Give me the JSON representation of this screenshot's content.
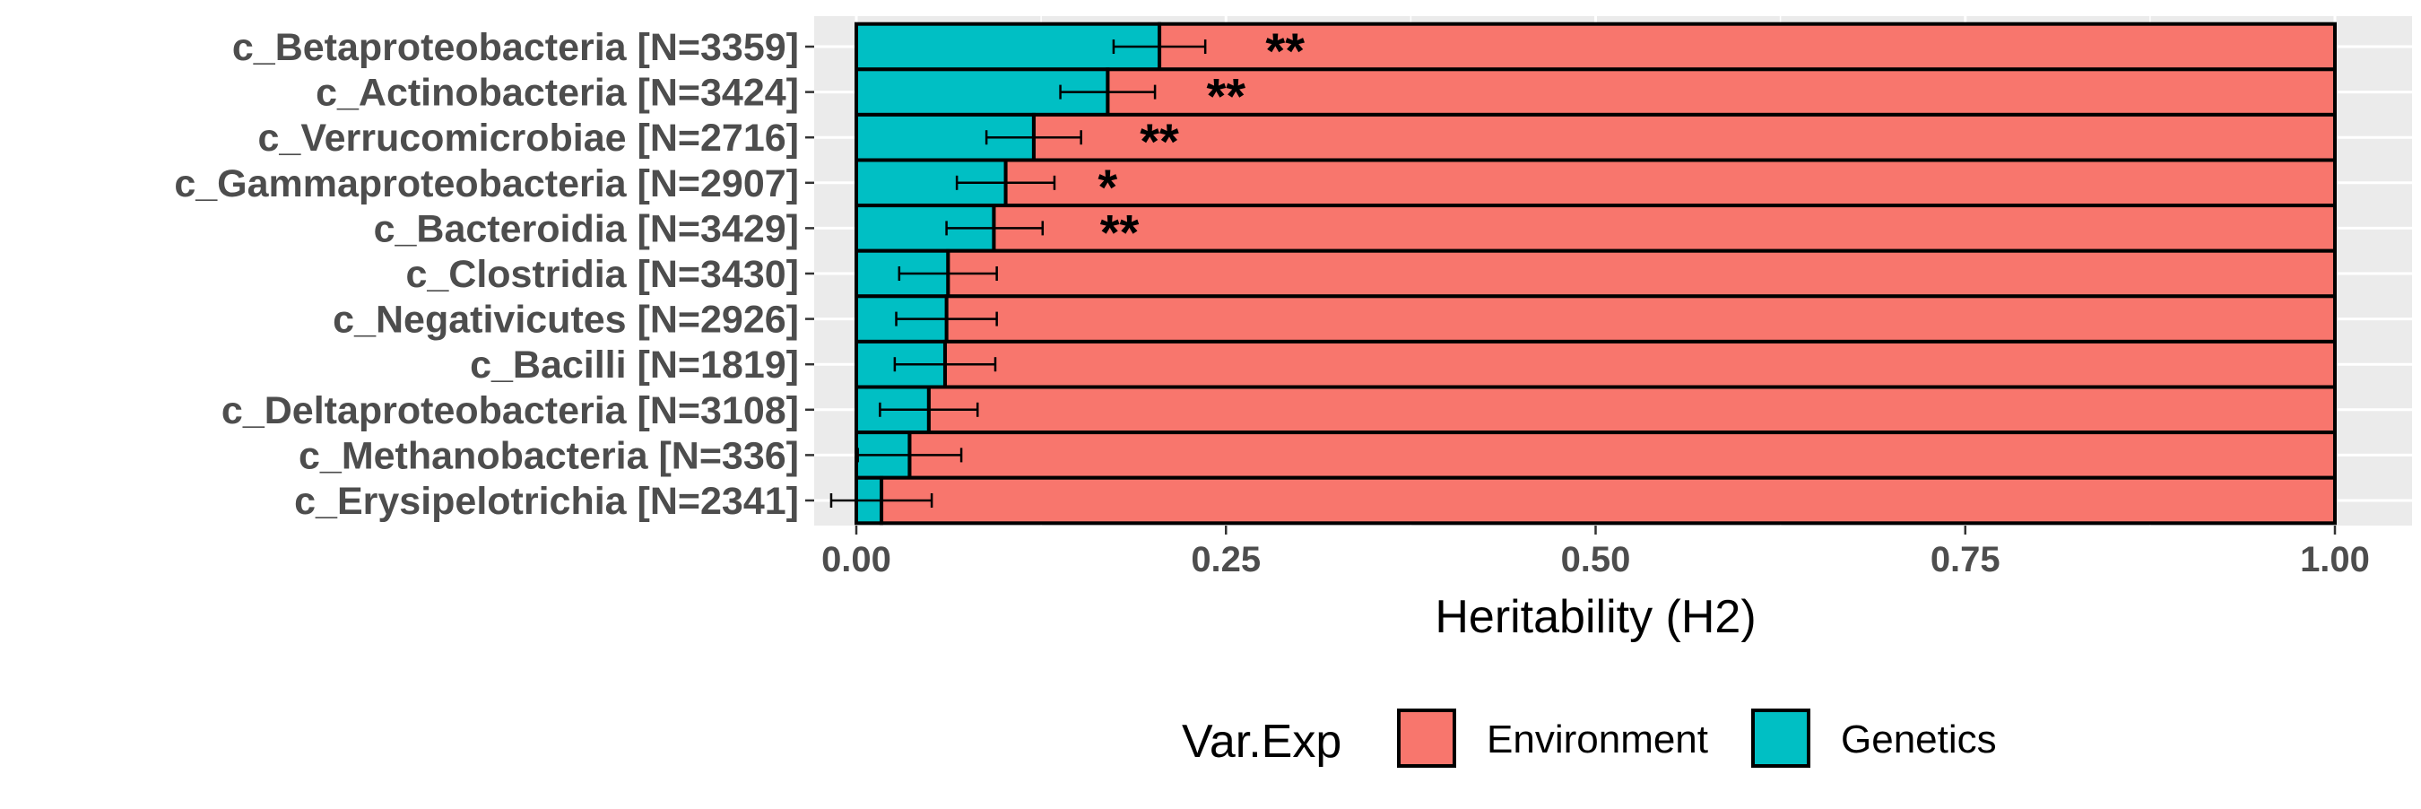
{
  "chart_data": {
    "type": "bar",
    "orientation": "horizontal",
    "stacked": true,
    "xlabel": "Heritability (H2)",
    "xlim": [
      0,
      1
    ],
    "xticks": [
      "0.00",
      "0.25",
      "0.50",
      "0.75",
      "1.00"
    ],
    "xtick_values": [
      0,
      0.25,
      0.5,
      0.75,
      1.0
    ],
    "grid": true,
    "legend_position": "bottom",
    "legend": {
      "title": "Var.Exp",
      "entries": [
        {
          "name": "Environment",
          "color": "#f8766d"
        },
        {
          "name": "Genetics",
          "color": "#00bfc4"
        }
      ]
    },
    "categories": [
      "c_Betaproteobacteria [N=3359]",
      "c_Actinobacteria [N=3424]",
      "c_Verrucomicrobiae [N=2716]",
      "c_Gammaproteobacteria [N=2907]",
      "c_Bacteroidia [N=3429]",
      "c_Clostridia [N=3430]",
      "c_Negativicutes [N=2926]",
      "c_Bacilli [N=1819]",
      "c_Deltaproteobacteria [N=3108]",
      "c_Methanobacteria [N=336]",
      "c_Erysipelotrichia [N=2341]"
    ],
    "series": [
      {
        "name": "Genetics",
        "color": "#00bfc4",
        "values": [
          0.205,
          0.17,
          0.12,
          0.101,
          0.093,
          0.062,
          0.061,
          0.06,
          0.049,
          0.036,
          0.017
        ]
      },
      {
        "name": "Environment",
        "color": "#f8766d",
        "values": [
          0.795,
          0.83,
          0.88,
          0.899,
          0.907,
          0.938,
          0.939,
          0.94,
          0.951,
          0.964,
          0.983
        ]
      }
    ],
    "error_bars": {
      "series": "Genetics",
      "lower": [
        0.174,
        0.138,
        0.088,
        0.068,
        0.061,
        0.029,
        0.027,
        0.026,
        0.016,
        0.001,
        -0.017
      ],
      "upper": [
        0.236,
        0.202,
        0.152,
        0.134,
        0.126,
        0.095,
        0.095,
        0.094,
        0.082,
        0.071,
        0.051
      ]
    },
    "significance": [
      "**",
      "**",
      "**",
      "*",
      "**",
      "",
      "",
      "",
      "",
      "",
      ""
    ],
    "significance_x": [
      0.29,
      0.25,
      0.205,
      0.17,
      0.178,
      null,
      null,
      null,
      null,
      null,
      null
    ]
  }
}
